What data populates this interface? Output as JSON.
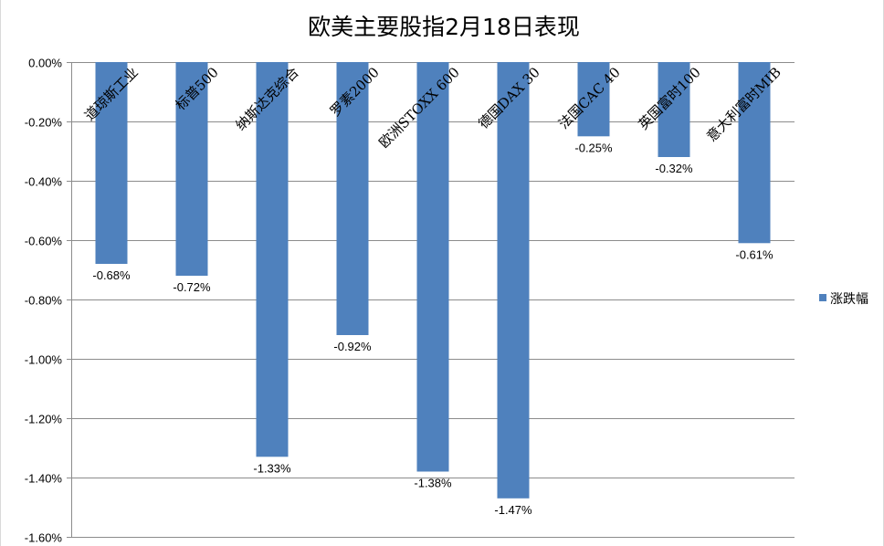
{
  "chart_data": {
    "type": "bar",
    "title": "欧美主要股指2月18日表现",
    "categories": [
      "道琼斯工业",
      "标普500",
      "纳斯达克综合",
      "罗素2000",
      "欧洲STOXX 600",
      "德国DAX 30",
      "法国CAC 40",
      "英国富时100",
      "意大利富时MIB"
    ],
    "series": [
      {
        "name": "涨跌幅",
        "values": [
          -0.68,
          -0.72,
          -1.33,
          -0.92,
          -1.38,
          -1.47,
          -0.25,
          -0.32,
          -0.61
        ],
        "labels": [
          "-0.68%",
          "-0.72%",
          "-1.33%",
          "-0.92%",
          "-1.38%",
          "-1.47%",
          "-0.25%",
          "-0.32%",
          "-0.61%"
        ]
      }
    ],
    "ylim": [
      -1.6,
      0
    ],
    "yticks": [
      0,
      -0.2,
      -0.4,
      -0.6,
      -0.8,
      -1.0,
      -1.2,
      -1.4,
      -1.6
    ],
    "ytick_labels": [
      "0.00%",
      "-0.20%",
      "-0.40%",
      "-0.60%",
      "-0.80%",
      "-1.00%",
      "-1.20%",
      "-1.40%",
      "-1.60%"
    ],
    "xlabel": "",
    "ylabel": "",
    "grid": true,
    "legend": "right",
    "bar_color": "#4f81bd"
  }
}
